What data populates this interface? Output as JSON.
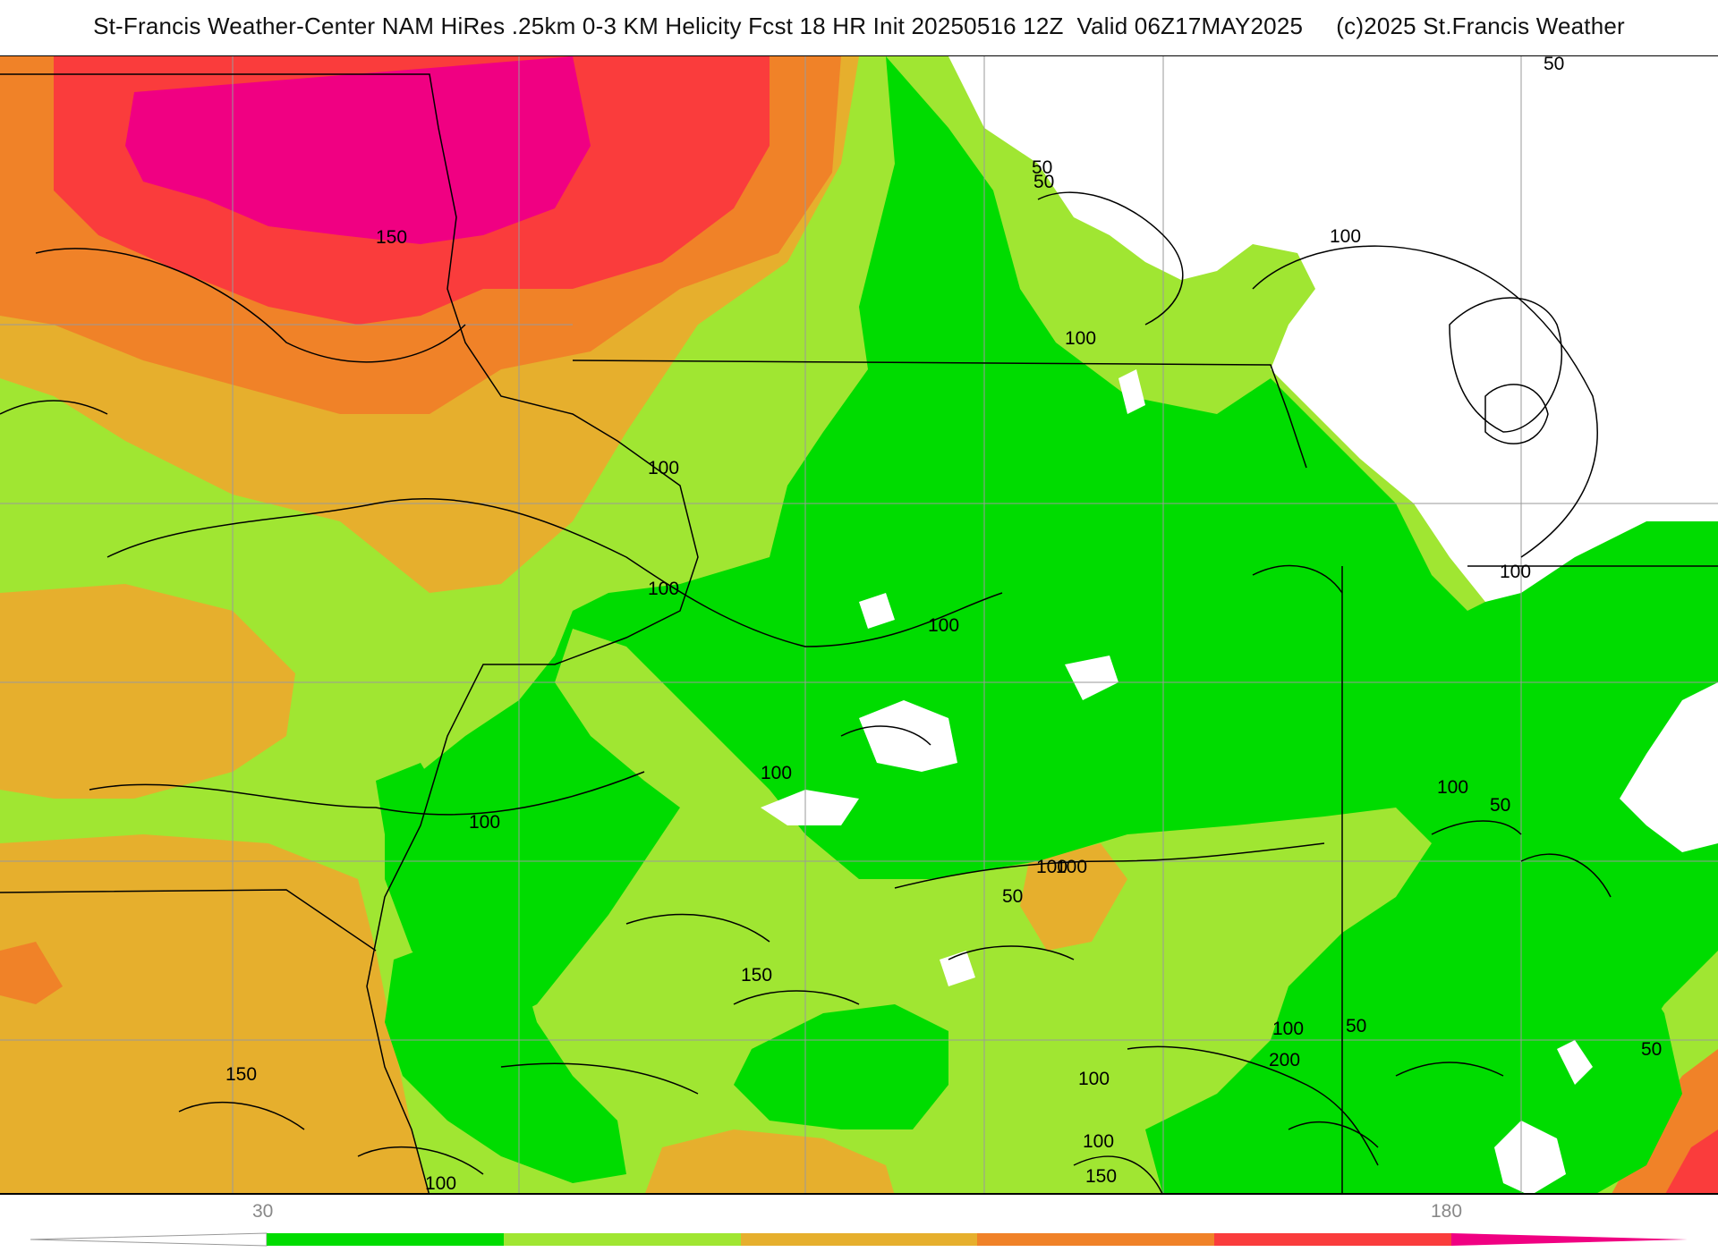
{
  "title": "St-Francis Weather-Center NAM HiRes .25km 0-3 KM Helicity Fcst 18 HR Init 20250516 12Z  Valid 06Z17MAY2025     (c)2025 St.Francis Weather",
  "colors": {
    "lt30": "#ffffff",
    "band1": "#00dc00",
    "band2": "#a0e632",
    "band3": "#e6af2d",
    "band4": "#f08228",
    "band5": "#fa3c3c",
    "band6": "#f00082",
    "contour": "#000000",
    "border": "#9a9a9a"
  },
  "colorbar": {
    "tick_labels": [
      "30",
      "180"
    ]
  },
  "contour_labels": [
    "50",
    "50",
    "50",
    "50",
    "50",
    "50",
    "50",
    "100",
    "100",
    "100",
    "100",
    "100",
    "100",
    "100",
    "100",
    "100",
    "100",
    "100",
    "100",
    "100",
    "100",
    "100",
    "150",
    "150",
    "150",
    "150",
    "200"
  ]
}
